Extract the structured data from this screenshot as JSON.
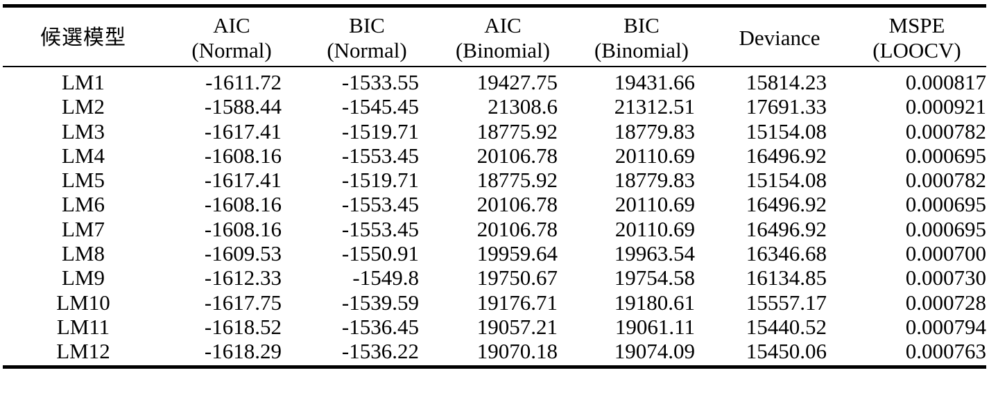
{
  "table": {
    "headers": [
      [
        "候選模型"
      ],
      [
        "AIC",
        "(Normal)"
      ],
      [
        "BIC",
        "(Normal)"
      ],
      [
        "AIC",
        "(Binomial)"
      ],
      [
        "BIC",
        "(Binomial)"
      ],
      [
        "Deviance"
      ],
      [
        "MSPE",
        "(LOOCV)"
      ]
    ],
    "rows": [
      [
        "LM1",
        "-1611.72",
        "-1533.55",
        "19427.75",
        "19431.66",
        "15814.23",
        "0.000817"
      ],
      [
        "LM2",
        "-1588.44",
        "-1545.45",
        "21308.6",
        "21312.51",
        "17691.33",
        "0.000921"
      ],
      [
        "LM3",
        "-1617.41",
        "-1519.71",
        "18775.92",
        "18779.83",
        "15154.08",
        "0.000782"
      ],
      [
        "LM4",
        "-1608.16",
        "-1553.45",
        "20106.78",
        "20110.69",
        "16496.92",
        "0.000695"
      ],
      [
        "LM5",
        "-1617.41",
        "-1519.71",
        "18775.92",
        "18779.83",
        "15154.08",
        "0.000782"
      ],
      [
        "LM6",
        "-1608.16",
        "-1553.45",
        "20106.78",
        "20110.69",
        "16496.92",
        "0.000695"
      ],
      [
        "LM7",
        "-1608.16",
        "-1553.45",
        "20106.78",
        "20110.69",
        "16496.92",
        "0.000695"
      ],
      [
        "LM8",
        "-1609.53",
        "-1550.91",
        "19959.64",
        "19963.54",
        "16346.68",
        "0.000700"
      ],
      [
        "LM9",
        "-1612.33",
        "-1549.8",
        "19750.67",
        "19754.58",
        "16134.85",
        "0.000730"
      ],
      [
        "LM10",
        "-1617.75",
        "-1539.59",
        "19176.71",
        "19180.61",
        "15557.17",
        "0.000728"
      ],
      [
        "LM11",
        "-1618.52",
        "-1536.45",
        "19057.21",
        "19061.11",
        "15440.52",
        "0.000794"
      ],
      [
        "LM12",
        "-1618.29",
        "-1536.22",
        "19070.18",
        "19074.09",
        "15450.06",
        "0.000763"
      ]
    ]
  }
}
